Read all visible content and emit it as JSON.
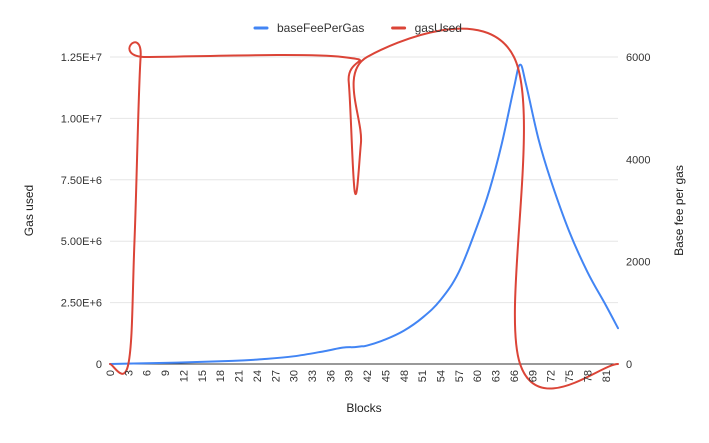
{
  "chart_data": {
    "type": "line",
    "title": "",
    "xlabel": "Blocks",
    "y_left_label": "Gas used",
    "y_right_label": "Base fee per gas",
    "y_left_range": [
      0,
      12500000
    ],
    "y_right_range": [
      0,
      6000
    ],
    "y_left_ticks": [
      "0",
      "2.50E+6",
      "5.00E+6",
      "7.50E+6",
      "1.00E+7",
      "1.25E+7"
    ],
    "y_right_ticks": [
      "0",
      "2000",
      "4000",
      "6000"
    ],
    "x_ticks": [
      "0",
      "3",
      "6",
      "9",
      "12",
      "15",
      "18",
      "21",
      "24",
      "27",
      "30",
      "33",
      "36",
      "39",
      "42",
      "45",
      "48",
      "51",
      "54",
      "57",
      "60",
      "63",
      "66",
      "69",
      "72",
      "75",
      "78",
      "81"
    ],
    "x_range": [
      0,
      83
    ],
    "grid": true,
    "legend_position": "top",
    "series": [
      {
        "name": "baseFeePerGas",
        "axis": "right",
        "color": "#4285f4",
        "x": [
          0,
          10,
          20,
          25,
          30,
          35,
          38,
          40,
          41,
          42,
          45,
          48,
          51,
          54,
          57,
          60,
          62,
          64,
          66,
          67,
          68,
          70,
          72,
          75,
          78,
          81,
          83
        ],
        "values": [
          0,
          25,
          60,
          95,
          150,
          250,
          320,
          330,
          345,
          360,
          480,
          650,
          900,
          1250,
          1800,
          2700,
          3400,
          4300,
          5400,
          5850,
          5450,
          4400,
          3600,
          2600,
          1800,
          1150,
          700
        ]
      },
      {
        "name": "gasUsed",
        "axis": "left",
        "color": "#db4437",
        "x": [
          0,
          3,
          4,
          5,
          6,
          38,
          39,
          40,
          41,
          42,
          66,
          67,
          83
        ],
        "values": [
          0,
          0,
          5000000,
          12500000,
          12500000,
          12500000,
          11500000,
          7000000,
          9000000,
          12500000,
          12500000,
          0,
          0
        ]
      }
    ]
  }
}
